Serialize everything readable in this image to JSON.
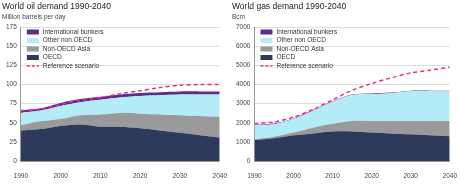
{
  "chart_data": [
    {
      "type": "area",
      "title": "World oil demand 1990-2040",
      "y_label": "Million barrels per day",
      "x": [
        1990,
        1995,
        2000,
        2005,
        2010,
        2015,
        2020,
        2025,
        2030,
        2035,
        2040
      ],
      "xlim": [
        1990,
        2040
      ],
      "xticks": [
        1990,
        2000,
        2010,
        2020,
        2030,
        2040
      ],
      "ylim": [
        0,
        175
      ],
      "yticks": [
        0,
        25,
        50,
        75,
        100,
        125,
        150,
        175
      ],
      "stacked": true,
      "grid": true,
      "legend": "upper left",
      "series": [
        {
          "name": "OECD",
          "type": "area",
          "color": "#2e3a5c",
          "values": [
            40,
            42,
            46,
            48,
            45,
            45,
            43,
            40,
            37,
            34,
            31
          ]
        },
        {
          "name": "Non-OECD Asia",
          "type": "area",
          "color": "#9a9a9a",
          "values": [
            7,
            10,
            9,
            12,
            16,
            18,
            19,
            21,
            23,
            25,
            27
          ]
        },
        {
          "name": "Other non OECD",
          "type": "area",
          "color": "#b3ecf7",
          "values": [
            16,
            14,
            17,
            17,
            19,
            20,
            23,
            25,
            27,
            28,
            29
          ]
        },
        {
          "name": "International bunkers",
          "type": "area",
          "color": "#5a2d91",
          "values": [
            3,
            3,
            4,
            4,
            4,
            4,
            4,
            4,
            4,
            4,
            4
          ]
        },
        {
          "name": "Reference scenario",
          "type": "line",
          "line_style": "dashed",
          "color": "#e8308a",
          "values": [
            66,
            68,
            74,
            80,
            83,
            88,
            92,
            96,
            99,
            100,
            100
          ]
        }
      ]
    },
    {
      "type": "area",
      "title": "World gas demand 1990-2040",
      "y_label": "Bcm",
      "x": [
        1990,
        1995,
        2000,
        2005,
        2010,
        2015,
        2020,
        2025,
        2030,
        2035,
        2040
      ],
      "xlim": [
        1990,
        2040
      ],
      "xticks": [
        1990,
        2000,
        2010,
        2020,
        2030,
        2040
      ],
      "ylim": [
        0,
        7000
      ],
      "yticks": [
        0,
        1000,
        2000,
        3000,
        4000,
        5000,
        6000,
        7000
      ],
      "stacked": true,
      "grid": true,
      "legend": "upper left",
      "series": [
        {
          "name": "OECD",
          "type": "area",
          "color": "#2e3a5c",
          "values": [
            1100,
            1200,
            1350,
            1450,
            1550,
            1550,
            1500,
            1450,
            1400,
            1350,
            1300
          ]
        },
        {
          "name": "Non-OECD Asia",
          "type": "area",
          "color": "#9a9a9a",
          "values": [
            50,
            80,
            150,
            300,
            400,
            550,
            600,
            650,
            700,
            750,
            800
          ]
        },
        {
          "name": "Other non OECD",
          "type": "area",
          "color": "#b3ecf7",
          "values": [
            750,
            650,
            700,
            900,
            1150,
            1350,
            1400,
            1450,
            1550,
            1550,
            1550
          ]
        },
        {
          "name": "International bunkers",
          "type": "area",
          "color": "#5a2d91",
          "values": [
            30,
            30,
            30,
            30,
            30,
            30,
            30,
            30,
            30,
            30,
            30
          ]
        },
        {
          "name": "Reference scenario",
          "type": "line",
          "line_style": "dashed",
          "color": "#e8308a",
          "values": [
            1950,
            2050,
            2300,
            2700,
            3200,
            3700,
            4050,
            4350,
            4600,
            4750,
            4900
          ]
        }
      ]
    }
  ]
}
